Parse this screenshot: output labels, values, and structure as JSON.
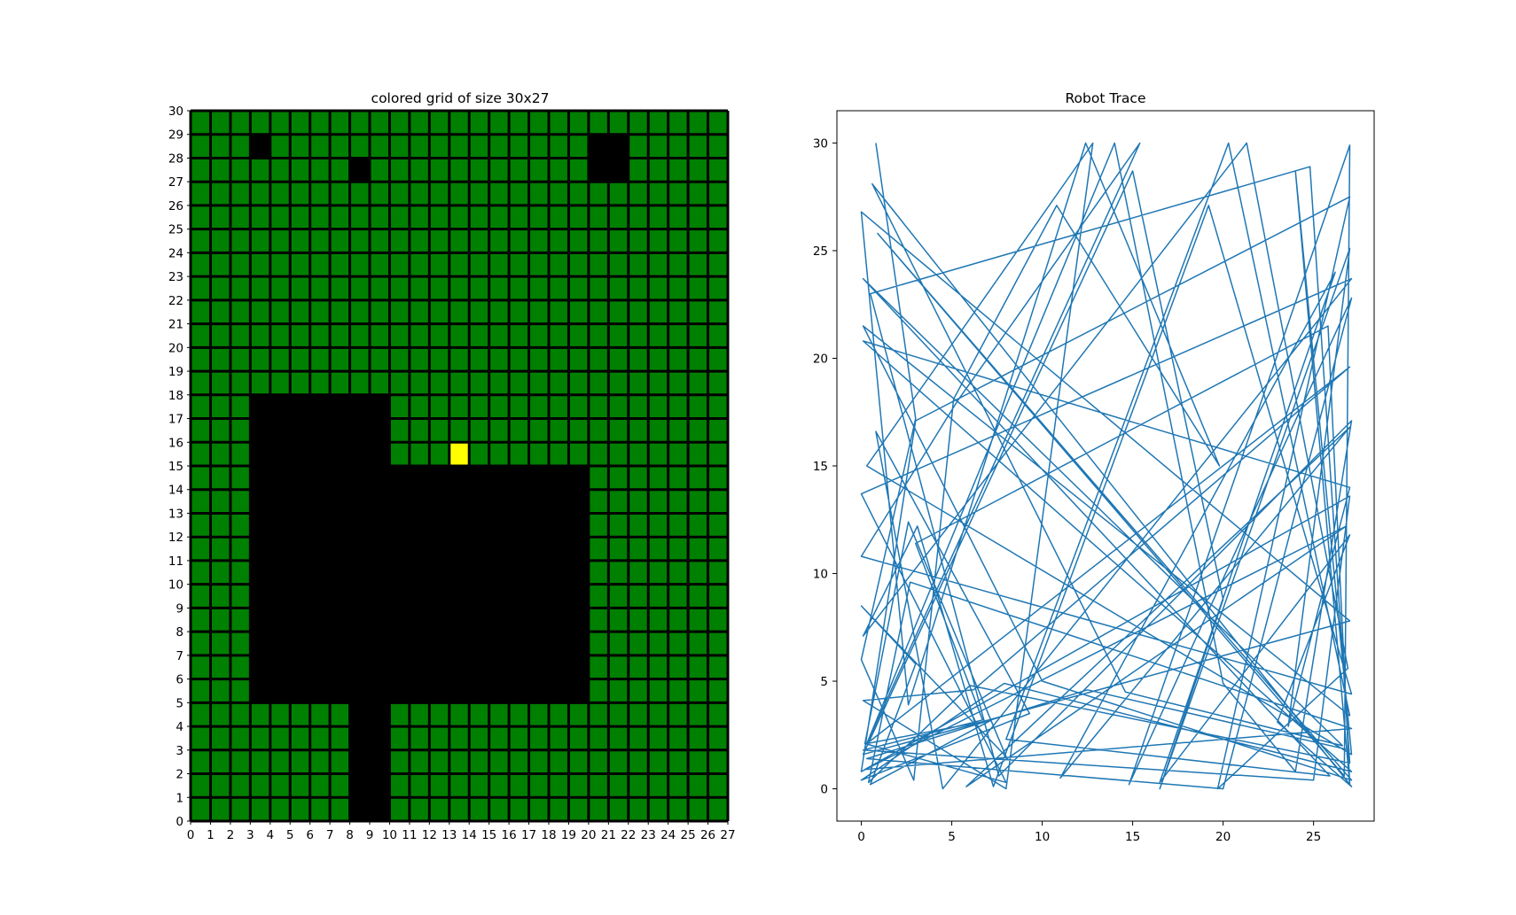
{
  "chart_data": [
    {
      "type": "heatmap",
      "title": "colored grid of size 30x27",
      "xlim": [
        0,
        27
      ],
      "ylim": [
        0,
        30
      ],
      "xticks": [
        0,
        1,
        2,
        3,
        4,
        5,
        6,
        7,
        8,
        9,
        10,
        11,
        12,
        13,
        14,
        15,
        16,
        17,
        18,
        19,
        20,
        21,
        22,
        23,
        24,
        25,
        26,
        27
      ],
      "yticks": [
        0,
        1,
        2,
        3,
        4,
        5,
        6,
        7,
        8,
        9,
        10,
        11,
        12,
        13,
        14,
        15,
        16,
        17,
        18,
        19,
        20,
        21,
        22,
        23,
        24,
        25,
        26,
        27,
        28,
        29,
        30
      ],
      "colors": {
        "free": "#008000",
        "obstacle": "#000000",
        "target": "#ffff00",
        "gridline": "#000000"
      },
      "obstacles": [
        {
          "x0": 3,
          "y0": 5,
          "x1": 10,
          "y1": 18
        },
        {
          "x0": 10,
          "y0": 5,
          "x1": 20,
          "y1": 15
        },
        {
          "x0": 8,
          "y0": 0,
          "x1": 10,
          "y1": 5
        },
        {
          "x0": 3,
          "y0": 28,
          "x1": 4,
          "y1": 29
        },
        {
          "x0": 8,
          "y0": 27,
          "x1": 9,
          "y1": 28
        },
        {
          "x0": 20,
          "y0": 27,
          "x1": 22,
          "y1": 29
        }
      ],
      "target": {
        "x0": 13,
        "y0": 15,
        "x1": 14,
        "y1": 16
      }
    },
    {
      "type": "line",
      "title": "Robot Trace",
      "xlim": [
        -1.35,
        28.35
      ],
      "ylim": [
        -1.5,
        31.5
      ],
      "xticks": [
        0,
        5,
        10,
        15,
        20,
        25
      ],
      "yticks": [
        0,
        5,
        10,
        15,
        20,
        25,
        30
      ],
      "color": "#1f77b4",
      "x": [
        0.8,
        3.0,
        0.0,
        2.9,
        5.1,
        10.8,
        19.8,
        12.4,
        2.6,
        0.0,
        27.0,
        0.1,
        15.0,
        20.0,
        16.5,
        27.0,
        23.6,
        27.0,
        0.1,
        27.1,
        7.9,
        0.0,
        9.3,
        0.8,
        4.5,
        27.1,
        0.0,
        8.0,
        0.2,
        2.6,
        8.0,
        0.0,
        3.0,
        0.5,
        7.2,
        0.3,
        14.0,
        20.0,
        24.0,
        27.1,
        7.6,
        0.5,
        24.8,
        27.0,
        6.0,
        0.4,
        2.7,
        27.1,
        0.2,
        27.0,
        25.0,
        0.1,
        6.7,
        3.0,
        25.8,
        27.0,
        24.0,
        27.1,
        0.3,
        12.8,
        8.0,
        0.1,
        6.2,
        27.0,
        0.3,
        15.4,
        5.3,
        0.0,
        27.1,
        19.2,
        7.3,
        3.1,
        0.1,
        21.3,
        26.9,
        19.7,
        27.0,
        3.0,
        0.0,
        26.8,
        5.8,
        27.0,
        11.0,
        26.2,
        16.5,
        27.0,
        23.0,
        27.1,
        0.6,
        14.6,
        26.6,
        0.1,
        25.9,
        8.0,
        20.3,
        27.0,
        0.1,
        10.0,
        27.1,
        0.9,
        26.7,
        27.0,
        14.8,
        27.1,
        20.0,
        0.3,
        12.5,
        27.0
      ],
      "y": [
        30.0,
        17.2,
        6.0,
        0.4,
        18.1,
        27.1,
        15.0,
        30.0,
        3.9,
        26.8,
        7.8,
        1.6,
        28.7,
        8.8,
        0.0,
        25.1,
        2.9,
        14.0,
        20.8,
        0.8,
        4.9,
        0.4,
        3.5,
        16.6,
        0.0,
        23.7,
        13.7,
        0.3,
        2.1,
        12.4,
        1.5,
        8.5,
        5.8,
        0.2,
        3.2,
        2.1,
        30.0,
        4.9,
        0.8,
        17.1,
        0.6,
        23.0,
        28.9,
        1.2,
        4.8,
        0.3,
        9.6,
        2.8,
        0.9,
        13.6,
        0.4,
        1.8,
        3.2,
        11.4,
        21.5,
        0.2,
        28.7,
        1.6,
        15.0,
        30.0,
        0.0,
        4.1,
        4.6,
        19.6,
        2.1,
        30.0,
        18.0,
        10.8,
        4.4,
        27.1,
        0.1,
        12.2,
        7.1,
        30.0,
        5.6,
        0.0,
        27.5,
        17.1,
        0.8,
        12.2,
        0.1,
        16.8,
        0.5,
        24.0,
        0.3,
        11.8,
        3.1,
        0.1,
        28.1,
        4.5,
        2.0,
        23.7,
        0.6,
        2.3,
        30.0,
        3.4,
        21.5,
        5.0,
        0.4,
        25.8,
        0.6,
        29.9,
        0.2,
        22.8,
        0.0,
        1.4,
        4.6,
        1.8
      ]
    }
  ]
}
